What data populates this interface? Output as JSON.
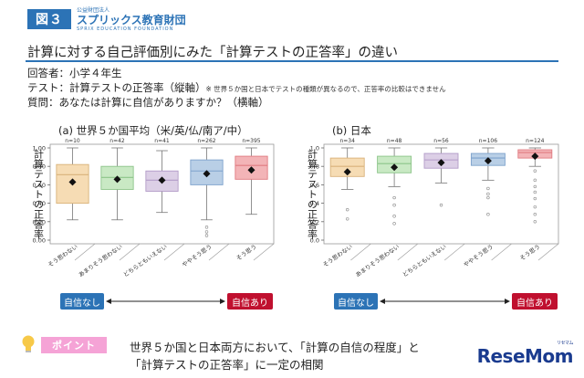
{
  "header": {
    "figure_label": "図３",
    "org_type": "公益財団法人",
    "org_name": "スプリックス教育財団",
    "org_name_en": "SPRIX EDUCATION FOUNDATION"
  },
  "title": "計算に対する自己評価別にみた「計算テストの正答率」の違い",
  "info": {
    "respondents": "回答者：小学４年生",
    "test": "テスト：計算テストの正答率（縦軸）",
    "test_note": "※ 世界５か国と日本でテストの種類が異なるので、正答率の比較はできません",
    "question": "質問：あなたは計算に自信がありますか？（横軸）"
  },
  "legend": {
    "low": "自信なし",
    "high": "自信あり"
  },
  "colors": {
    "accent": "#2c73b6",
    "high": "#c0102f",
    "point": "#f5a3d6",
    "box_fills": [
      "#f6dcb4",
      "#c9e9c4",
      "#dccfe6",
      "#b9cfe6",
      "#f3b4b7"
    ],
    "box_strokes": [
      "#d9b27a",
      "#8cc489",
      "#b29bc8",
      "#7da2cc",
      "#e07b81"
    ]
  },
  "chart_data": [
    {
      "type": "box",
      "title": "(a) 世界５か国平均（米/英/仏/南ア/中）",
      "ylabel": "計算テストの正答率",
      "ylim": [
        0,
        1.0
      ],
      "yticks": [
        "0.00",
        "0.20",
        "0.40",
        "0.60",
        "0.80",
        "1.00"
      ],
      "categories": [
        "そう思わない",
        "あまりそう思わない",
        "どちらともいえない",
        "ややそう思う",
        "そう思う"
      ],
      "n_labels": [
        "n=10",
        "n=42",
        "n=41",
        "n=262",
        "n=395"
      ],
      "boxes": [
        {
          "min": 0.22,
          "q1": 0.4,
          "median": 0.71,
          "q3": 0.82,
          "max": 1.0,
          "mean": 0.63,
          "outliers": []
        },
        {
          "min": 0.22,
          "q1": 0.55,
          "median": 0.68,
          "q3": 0.8,
          "max": 1.0,
          "mean": 0.66,
          "outliers": []
        },
        {
          "min": 0.3,
          "q1": 0.53,
          "median": 0.65,
          "q3": 0.75,
          "max": 0.97,
          "mean": 0.65,
          "outliers": []
        },
        {
          "min": 0.22,
          "q1": 0.6,
          "median": 0.75,
          "q3": 0.87,
          "max": 1.0,
          "mean": 0.72,
          "outliers": [
            0.14,
            0.09,
            0.05
          ]
        },
        {
          "min": 0.28,
          "q1": 0.66,
          "median": 0.81,
          "q3": 0.91,
          "max": 1.0,
          "mean": 0.76,
          "outliers": []
        }
      ]
    },
    {
      "type": "box",
      "title": "(b) 日本",
      "ylabel": "計算テストの正答率",
      "ylim": [
        0,
        1.0
      ],
      "yticks": [
        "0.0",
        "0.2",
        "0.4",
        "0.6",
        "0.8",
        "1.0"
      ],
      "categories": [
        "そう思わない",
        "あまりそう思わない",
        "どちらともいえない",
        "ややそう思う",
        "そう思う"
      ],
      "n_labels": [
        "n=34",
        "n=48",
        "n=56",
        "n=106",
        "n=124"
      ],
      "boxes": [
        {
          "min": 0.55,
          "q1": 0.69,
          "median": 0.8,
          "q3": 0.89,
          "max": 1.0,
          "mean": 0.74,
          "outliers": [
            0.33,
            0.23
          ]
        },
        {
          "min": 0.58,
          "q1": 0.73,
          "median": 0.83,
          "q3": 0.91,
          "max": 1.0,
          "mean": 0.79,
          "outliers": [
            0.46,
            0.38,
            0.26,
            0.18
          ]
        },
        {
          "min": 0.62,
          "q1": 0.78,
          "median": 0.87,
          "q3": 0.94,
          "max": 1.0,
          "mean": 0.84,
          "outliers": [
            0.38
          ]
        },
        {
          "min": 0.65,
          "q1": 0.81,
          "median": 0.89,
          "q3": 0.94,
          "max": 1.0,
          "mean": 0.86,
          "outliers": [
            0.56,
            0.5,
            0.46,
            0.28
          ]
        },
        {
          "min": 0.8,
          "q1": 0.89,
          "median": 0.95,
          "q3": 0.98,
          "max": 1.0,
          "mean": 0.91,
          "outliers": [
            0.75,
            0.65,
            0.58,
            0.52,
            0.45,
            0.36,
            0.28,
            0.2
          ]
        }
      ]
    }
  ],
  "point": {
    "label": "ポイント",
    "line1": "世界５か国と日本両方において、「計算の自信の程度」と",
    "line2": "「計算テストの正答率」に一定の相関"
  },
  "logo": {
    "name": "ReseMom",
    "sub": "リセマム"
  }
}
